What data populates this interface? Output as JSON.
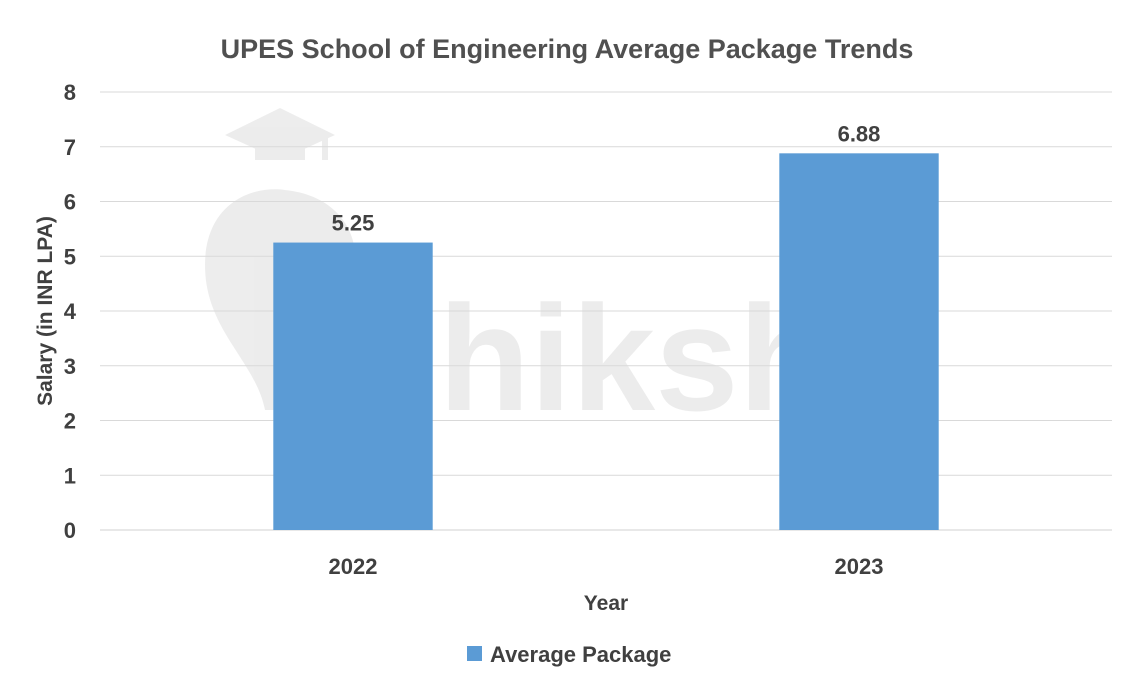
{
  "watermark_text": "shiksha",
  "chart_data": {
    "type": "bar",
    "title": "UPES School of Engineering Average Package Trends",
    "xlabel": "Year",
    "ylabel": "Salary (in INR LPA)",
    "categories": [
      "2022",
      "2023"
    ],
    "series": [
      {
        "name": "Average Package",
        "values": [
          5.25,
          6.88
        ],
        "color": "#5b9bd5"
      }
    ],
    "data_labels": [
      "5.25",
      "6.88"
    ],
    "ylim": [
      0,
      8
    ],
    "yticks": [
      0,
      1,
      2,
      3,
      4,
      5,
      6,
      7,
      8
    ],
    "grid": true,
    "legend_position": "bottom"
  }
}
